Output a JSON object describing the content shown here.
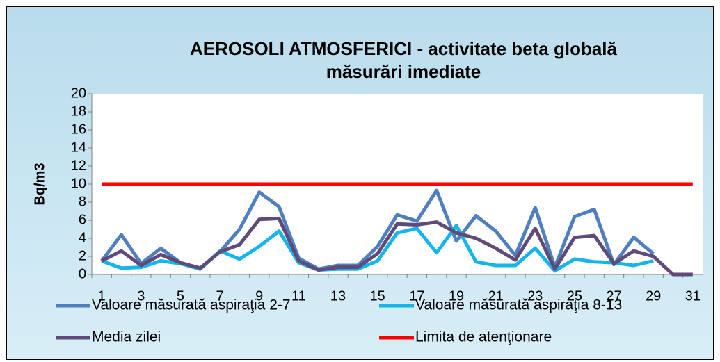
{
  "chart_data": {
    "type": "line",
    "title_lines": [
      "AEROSOLI  ATMOSFERICI - activitate beta globală",
      "măsurări imediate"
    ],
    "y_label": "Bq/m3",
    "categories": [
      1,
      null,
      3,
      null,
      5,
      null,
      7,
      null,
      9,
      null,
      11,
      null,
      13,
      null,
      15,
      null,
      17,
      null,
      19,
      null,
      21,
      null,
      23,
      null,
      25,
      null,
      27,
      null,
      29,
      null,
      31
    ],
    "ylim": [
      0,
      20
    ],
    "yticks": [
      0,
      2,
      4,
      6,
      8,
      10,
      12,
      14,
      16,
      18,
      20
    ],
    "legend": "bottom",
    "series": [
      {
        "name": "Valoare măsurată aspiraţia 2-7",
        "color": "#4f7fbf",
        "values": [
          1.5,
          4.4,
          1.2,
          2.9,
          1.3,
          0.7,
          2.5,
          5.0,
          9.1,
          7.5,
          1.8,
          0.6,
          1.0,
          1.0,
          3.1,
          6.6,
          5.9,
          9.3,
          3.7,
          6.5,
          4.8,
          2.1,
          7.4,
          0.8,
          6.4,
          7.2,
          1.1,
          4.1,
          2.3,
          null,
          null
        ]
      },
      {
        "name": "Valoare măsurată aspiraţia 8-13",
        "color": "#14b4ec",
        "values": [
          1.5,
          0.7,
          0.8,
          1.5,
          1.2,
          0.6,
          2.6,
          1.7,
          3.1,
          4.8,
          1.3,
          0.5,
          0.6,
          0.6,
          1.5,
          4.6,
          5.1,
          2.4,
          5.4,
          1.4,
          1.0,
          1.0,
          2.9,
          0.4,
          1.7,
          1.4,
          1.3,
          1.0,
          1.5,
          null,
          null
        ]
      },
      {
        "name": "Media zilei",
        "color": "#5f4a7a",
        "values": [
          1.5,
          2.6,
          1.0,
          2.2,
          1.3,
          0.7,
          2.5,
          3.3,
          6.1,
          6.2,
          1.5,
          0.5,
          0.8,
          0.8,
          2.3,
          5.6,
          5.5,
          5.8,
          4.6,
          4.0,
          2.9,
          1.6,
          5.1,
          0.6,
          4.1,
          4.3,
          1.2,
          2.6,
          2.0,
          0,
          0
        ]
      },
      {
        "name": "Limita de atenţionare",
        "color": "#ff0000",
        "values": [
          10,
          10,
          10,
          10,
          10,
          10,
          10,
          10,
          10,
          10,
          10,
          10,
          10,
          10,
          10,
          10,
          10,
          10,
          10,
          10,
          10,
          10,
          10,
          10,
          10,
          10,
          10,
          10,
          10,
          10,
          10
        ]
      }
    ]
  }
}
